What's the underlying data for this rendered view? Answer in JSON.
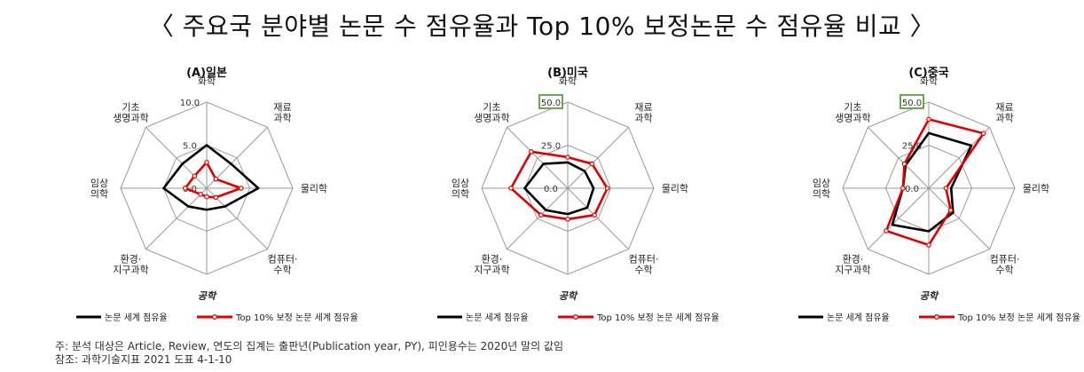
{
  "title": "〈 주요국 분야별 논문 수 점유율과 Top 10% 보정논문 수 점유율 비교 〉",
  "legend": {
    "series1": "논문 세계 점유율",
    "series2": "Top 10% 보정 논문 세계 점유율"
  },
  "colors": {
    "series1": "#000000",
    "series2": "#e00000",
    "grid": "#9a9a9a",
    "highlight_box": "#6aa84f"
  },
  "footnote": "주: 분석 대상은 Article, Review, 연도의 집계는 출판년(Publication year, PY), 피인용수는 2020년 말의 값임",
  "source": "참조: 과학기술지표 2021 도표 4-1-10",
  "chart_data": [
    {
      "type": "radar",
      "title": "(A)일본",
      "categories": [
        "화학",
        "재료\n과학",
        "물리학",
        "컴퓨터·\n수학",
        "공학",
        "환경·\n지구과학",
        "임상\n의학",
        "기초\n생명과학"
      ],
      "rlim": [
        0,
        10
      ],
      "ticks": [
        "10.0",
        "5.0",
        "0.0"
      ],
      "highlight_max_tick": false,
      "series": [
        {
          "name": "논문 세계 점유율",
          "values": [
            5.0,
            4.0,
            6.0,
            3.0,
            2.5,
            3.0,
            5.0,
            4.0
          ]
        },
        {
          "name": "Top 10% 보정 논문 세계 점유율",
          "values": [
            3.0,
            1.5,
            4.0,
            1.5,
            1.0,
            1.0,
            2.5,
            2.0
          ]
        }
      ]
    },
    {
      "type": "radar",
      "title": "(B)미국",
      "categories": [
        "화학",
        "재료\n과학",
        "물리학",
        "컴퓨터·\n수학",
        "공학",
        "환경·\n지구과학",
        "임상\n의학",
        "기초\n생명과학"
      ],
      "rlim": [
        0,
        50
      ],
      "ticks": [
        "50.0",
        "25.0",
        "0.0"
      ],
      "highlight_max_tick": true,
      "series": [
        {
          "name": "논문 세계 점유율",
          "values": [
            15,
            14,
            15,
            16,
            15,
            18,
            25,
            20
          ]
        },
        {
          "name": "Top 10% 보정 논문 세계 점유율",
          "values": [
            18,
            20,
            23,
            22,
            18,
            22,
            33,
            30
          ]
        }
      ]
    },
    {
      "type": "radar",
      "title": "(C)중국",
      "categories": [
        "화학",
        "재료\n과학",
        "물리학",
        "컴퓨터·\n수학",
        "공학",
        "환경·\n지구과학",
        "임상\n의학",
        "기초\n생명과학"
      ],
      "rlim": [
        0,
        50
      ],
      "ticks": [
        "50.0",
        "25.0",
        "0.0"
      ],
      "highlight_max_tick": true,
      "series": [
        {
          "name": "논문 세계 점유율",
          "values": [
            32,
            35,
            13,
            20,
            25,
            30,
            15,
            19
          ]
        },
        {
          "name": "Top 10% 보정 논문 세계 점유율",
          "values": [
            40,
            45,
            10,
            18,
            33,
            35,
            15,
            20
          ]
        }
      ]
    }
  ]
}
